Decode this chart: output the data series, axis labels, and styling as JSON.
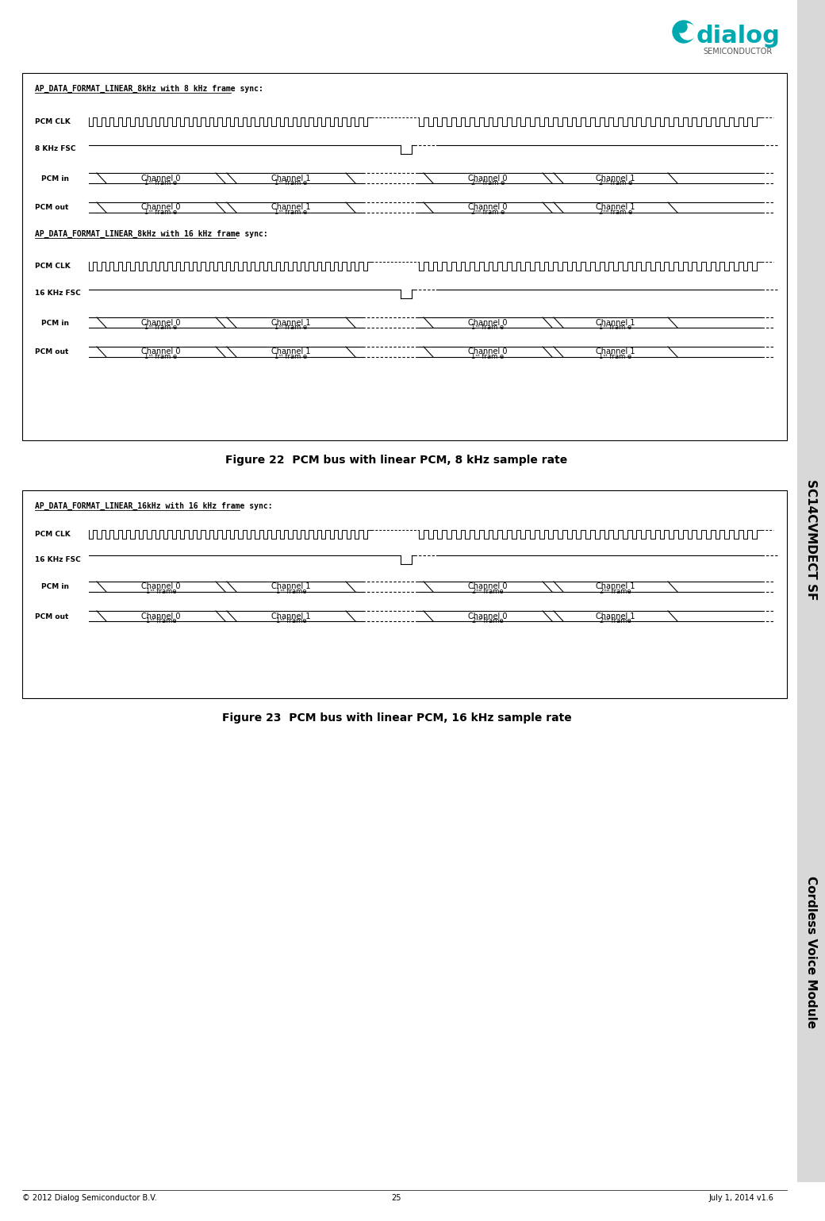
{
  "page_bg": "#ffffff",
  "fig_width": 10.4,
  "fig_height": 15.39,
  "dialog_logo_teal": "#00a8b0",
  "border_color": "#000000",
  "text_color": "#000000",
  "fig22_title": "Figure 22  PCM bus with linear PCM, 8 kHz sample rate",
  "fig23_title": "Figure 23  PCM bus with linear PCM, 16 kHz sample rate",
  "section1_label": "AP_DATA_FORMAT_LINEAR_8kHz with 8 kHz frame sync:",
  "section2_label": "AP_DATA_FORMAT_LINEAR_8kHz with 16 kHz frame sync:",
  "section3_label": "AP_DATA_FORMAT_LINEAR_16kHz with 16 kHz frame sync:",
  "footer_left": "© 2012 Dialog Semiconductor B.V.",
  "footer_center": "25",
  "footer_right": "July 1, 2014 v1.6",
  "sidebar_text": "SC14CVMDECT SF",
  "sidebar_text2": "Cordless Voice Module"
}
